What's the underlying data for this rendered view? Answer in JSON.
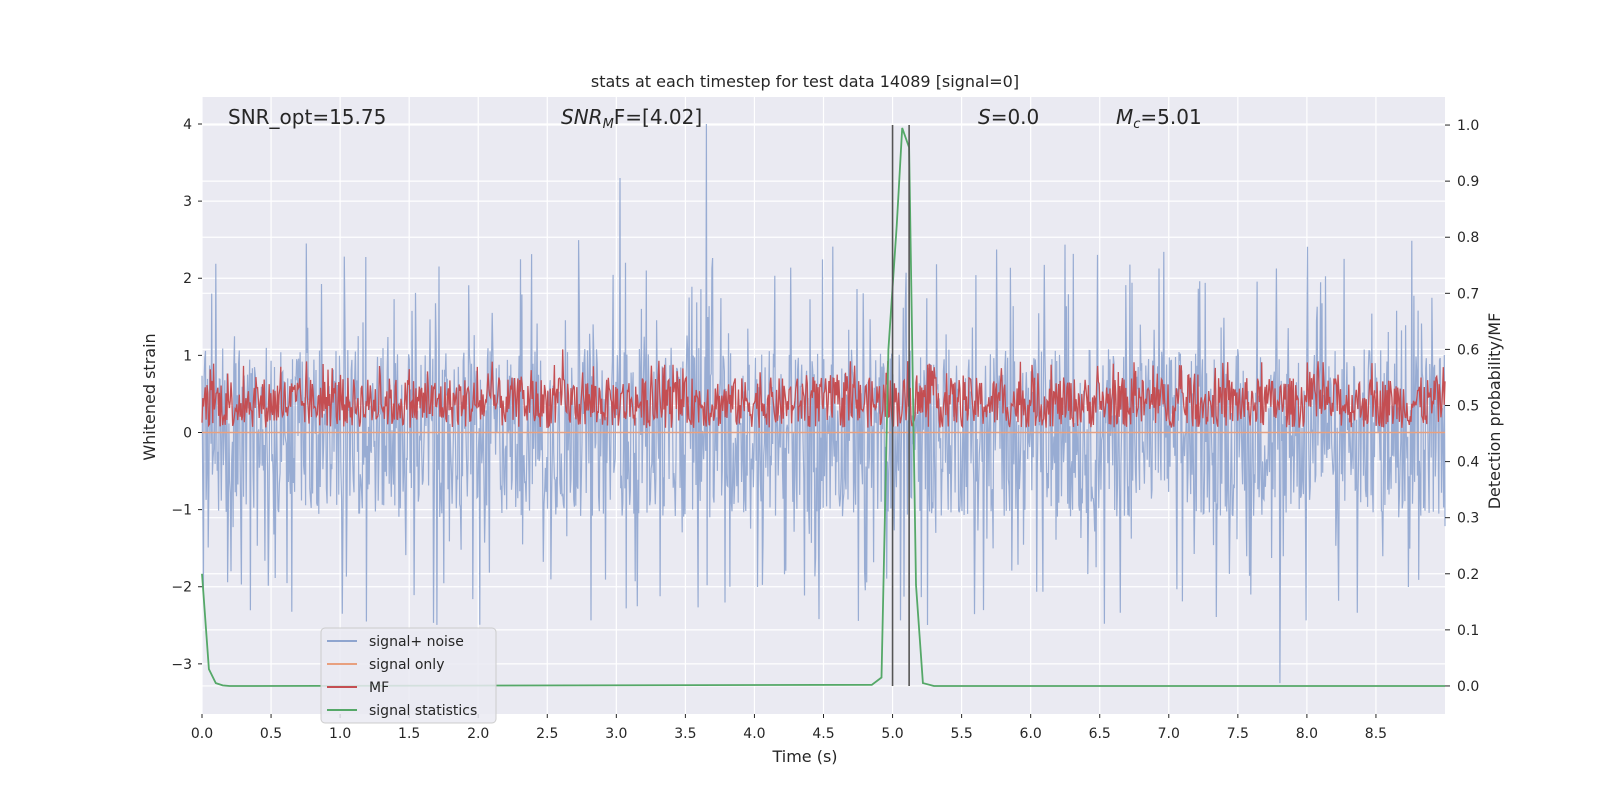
{
  "chart_data": {
    "type": "line",
    "title": "stats at each timestep for test data 14089 [signal=0]",
    "xlabel": "Time (s)",
    "ylabel_left": "Whitened strain",
    "ylabel_right": "Detection probability/MF",
    "xlim": [
      0.0,
      9.0
    ],
    "ylim_left": [
      -3.65,
      4.35
    ],
    "ylim_right": [
      -0.05,
      1.05
    ],
    "x_ticks": [
      "0.0",
      "0.5",
      "1.0",
      "1.5",
      "2.0",
      "2.5",
      "3.0",
      "3.5",
      "4.0",
      "4.5",
      "5.0",
      "5.5",
      "6.0",
      "6.5",
      "7.0",
      "7.5",
      "8.0",
      "8.5"
    ],
    "y_left_ticks": [
      "−3",
      "−2",
      "−1",
      "0",
      "1",
      "2",
      "3",
      "4"
    ],
    "y_right_ticks": [
      "0.0",
      "0.1",
      "0.2",
      "0.3",
      "0.4",
      "0.5",
      "0.6",
      "0.7",
      "0.8",
      "0.9",
      "1.0"
    ],
    "grid": true,
    "legend_position": "lower-left",
    "annotations": {
      "snr_opt": "SNR_opt=15.75",
      "snr_mf_sym": "SNR",
      "snr_mf_sub": "M",
      "snr_mf_rest": "F=[4.02]",
      "s_sym": "S",
      "s_val": "=0.0",
      "mc_sym": "M",
      "mc_sub": "c",
      "mc_val": "=5.01"
    },
    "vertical_markers_s": [
      5.0,
      5.12
    ],
    "series": [
      {
        "name": "signal+ noise",
        "color": "#8fa5cf",
        "axis": "left",
        "description_stats": {
          "core_band": [
            -1.1,
            1.1
          ],
          "typical_peak": 2.3,
          "max": 4.0,
          "min": -3.25
        }
      },
      {
        "name": "signal only",
        "color": "#e8a07f",
        "axis": "left",
        "values_const": 0.0
      },
      {
        "name": "MF",
        "color": "#c44e52",
        "axis": "right",
        "description_stats": {
          "band": [
            0.46,
            0.55
          ],
          "max": 0.6
        }
      },
      {
        "name": "signal statistics",
        "color": "#55a868",
        "axis": "right",
        "x": [
          0.0,
          0.05,
          0.1,
          0.15,
          0.2,
          0.3,
          4.85,
          4.92,
          4.97,
          5.03,
          5.07,
          5.12,
          5.17,
          5.22,
          5.3,
          9.0
        ],
        "y": [
          0.2,
          0.03,
          0.005,
          0.001,
          0.0,
          0.0,
          0.002,
          0.015,
          0.6,
          0.82,
          0.995,
          0.96,
          0.18,
          0.005,
          0.0,
          0.0
        ]
      }
    ],
    "colors": {
      "plot_bg": "#eaeaf2",
      "grid": "#ffffff",
      "marker_line": "#555555"
    }
  }
}
